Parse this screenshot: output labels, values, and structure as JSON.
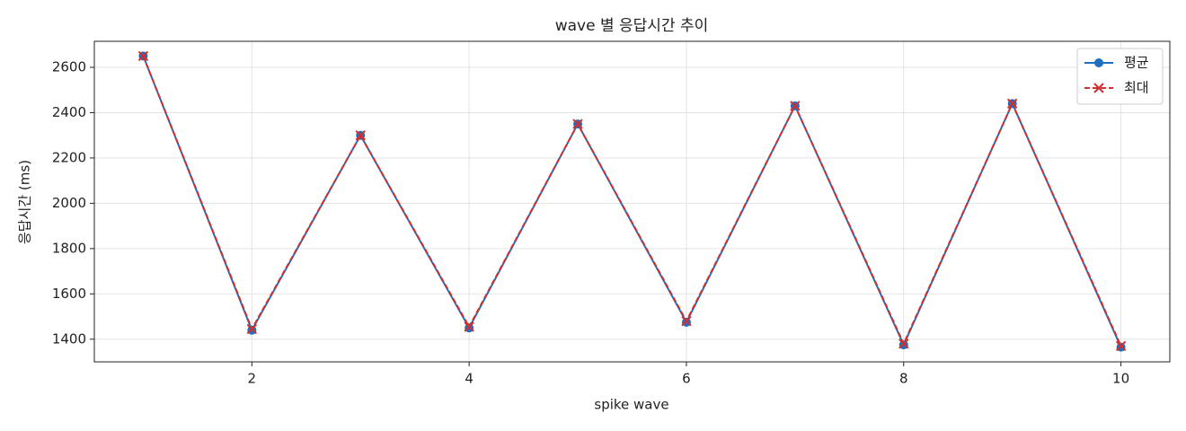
{
  "chart_data": {
    "type": "line",
    "title": "wave 별 응답시간 추이",
    "x_label": "spike wave",
    "y_label": "응답시간 (ms)",
    "x": [
      1,
      2,
      3,
      4,
      5,
      6,
      7,
      8,
      9,
      10
    ],
    "series": [
      {
        "name": "평균",
        "color": "#1f6fc0",
        "marker": "circle",
        "dash": false,
        "values": [
          2650,
          1440,
          2300,
          1450,
          2350,
          1475,
          2430,
          1375,
          2440,
          1365
        ]
      },
      {
        "name": "최대",
        "color": "#d03030",
        "marker": "x",
        "dash": true,
        "values": [
          2650,
          1445,
          2300,
          1455,
          2350,
          1480,
          2430,
          1380,
          2440,
          1370
        ]
      }
    ],
    "xlim": [
      0.55,
      10.45
    ],
    "ylim": [
      1300,
      2715
    ],
    "xticks": [
      2,
      4,
      6,
      8,
      10
    ],
    "yticks": [
      1400,
      1600,
      1800,
      2000,
      2200,
      2400,
      2600
    ],
    "grid": true,
    "legend": "upper right"
  }
}
